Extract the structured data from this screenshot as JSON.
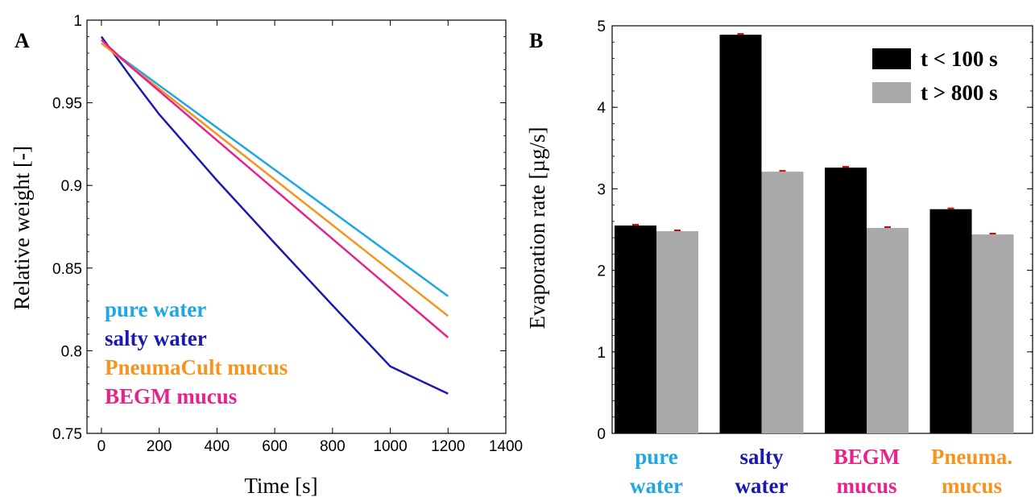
{
  "chart_data": [
    {
      "type": "line",
      "panel_label": "A",
      "title": "",
      "xlabel": "Time [s]",
      "ylabel": "Relative weight [-]",
      "xlim": [
        -50,
        1400
      ],
      "ylim": [
        0.75,
        1.0
      ],
      "xticks": [
        "0",
        "200",
        "400",
        "600",
        "800",
        "1000",
        "1200",
        "1400"
      ],
      "yticks": [
        "0.75",
        "0.8",
        "0.85",
        "0.9",
        "0.95",
        "1"
      ],
      "grid": false,
      "legend_position": "bottom-left",
      "series": [
        {
          "name": "pure water",
          "color": "#1EA7E1",
          "points": [
            [
              0,
              0.986
            ],
            [
              1200,
              0.833
            ]
          ]
        },
        {
          "name": "salty water",
          "color": "#1A1AB0",
          "points": [
            [
              0,
              0.99
            ],
            [
              100,
              0.966
            ],
            [
              200,
              0.943
            ],
            [
              400,
              0.903
            ],
            [
              600,
              0.865
            ],
            [
              800,
              0.8275
            ],
            [
              1000,
              0.7905
            ],
            [
              1200,
              0.774
            ]
          ]
        },
        {
          "name": "PneumaCult mucus",
          "color": "#F7931E",
          "points": [
            [
              0,
              0.986
            ],
            [
              1200,
              0.821
            ]
          ]
        },
        {
          "name": "BEGM mucus",
          "color": "#E8228A",
          "points": [
            [
              0,
              0.988
            ],
            [
              100,
              0.972
            ],
            [
              1200,
              0.808
            ]
          ]
        }
      ]
    },
    {
      "type": "bar",
      "panel_label": "B",
      "title": "",
      "xlabel": "",
      "ylabel": "Evaporation rate [µg/s]",
      "ylim": [
        0,
        5
      ],
      "yticks": [
        "0",
        "1",
        "2",
        "3",
        "4",
        "5"
      ],
      "grid": false,
      "legend_position": "top-right",
      "categories": [
        {
          "line1": "pure",
          "line2": "water",
          "color": "#1EA7E1"
        },
        {
          "line1": "salty",
          "line2": "water",
          "color": "#1A1AB0"
        },
        {
          "line1": "BEGM",
          "line2": "mucus",
          "color": "#E8228A"
        },
        {
          "line1": "Pneuma.",
          "line2": "mucus",
          "color": "#F7931E"
        }
      ],
      "series": [
        {
          "name": "t < 100 s",
          "color": "#000000",
          "values": [
            2.55,
            4.89,
            3.26,
            2.75
          ]
        },
        {
          "name": "t > 800 s",
          "color": "#A9A9A9",
          "values": [
            2.48,
            3.21,
            2.52,
            2.44
          ]
        }
      ],
      "error_bar_color": "#E00000"
    }
  ]
}
